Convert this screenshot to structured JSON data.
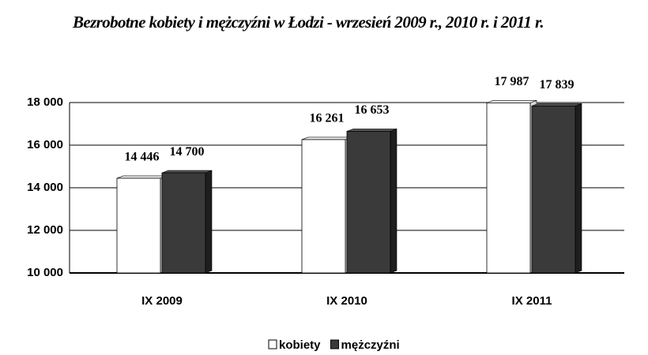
{
  "chart_data": {
    "type": "bar",
    "title": "Bezrobotne kobiety i mężczyźni w Łodzi - wrzesień 2009 r., 2010 r. i 2011 r.",
    "categories": [
      "IX 2009",
      "IX 2010",
      "IX 2011"
    ],
    "series": [
      {
        "name": "kobiety",
        "color": "#ffffff",
        "values": [
          14446,
          16261,
          17987
        ],
        "value_labels": [
          "14 446",
          "16 261",
          "17 987"
        ]
      },
      {
        "name": "mężczyźni",
        "color": "#3a3a3a",
        "values": [
          14700,
          16653,
          17839
        ],
        "value_labels": [
          "14 700",
          "16 653",
          "17 839"
        ]
      }
    ],
    "ylim": [
      10000,
      18000
    ],
    "yticks": [
      {
        "value": 10000,
        "label": "10 000"
      },
      {
        "value": 12000,
        "label": "12 000"
      },
      {
        "value": 14000,
        "label": "14 000"
      },
      {
        "value": 16000,
        "label": "16 000"
      },
      {
        "value": 18000,
        "label": "18 000"
      }
    ],
    "grid": true,
    "legend": "bottom"
  }
}
